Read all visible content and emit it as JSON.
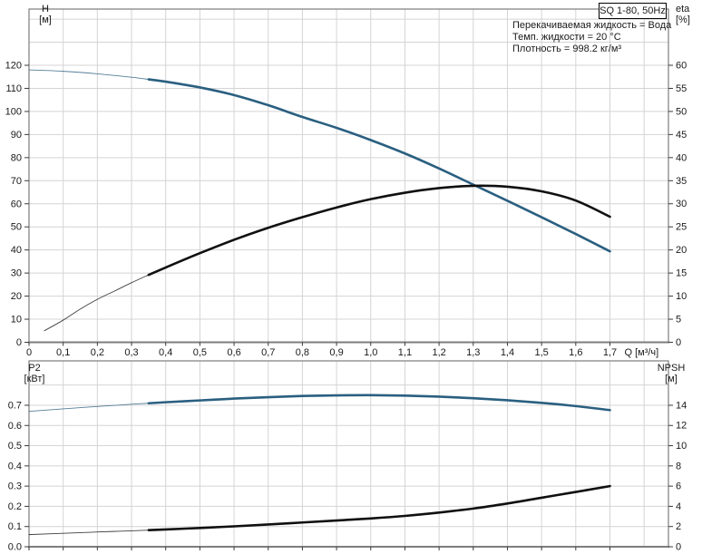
{
  "header": {
    "model_badge": "SQ 1-80, 50Hz",
    "info_lines": [
      "Перекачиваемая жидкость = Вода",
      "Темп. жидкости = 20 °C",
      "Плотность = 998.2 кг/м³"
    ]
  },
  "colors": {
    "curve_blue": "#2a5f80",
    "curve_black": "#101010",
    "grid": "#d4d4d4",
    "frame": "#7d7d7d",
    "tick": "#3a3a3a",
    "label": "#1a1a1a"
  },
  "chart_data": [
    {
      "type": "line",
      "title": "SQ 1-80, 50Hz",
      "grid": true,
      "x_axis": {
        "label": "Q [м³/ч]",
        "min": 0,
        "max": 1.7,
        "tick_step": 0.1,
        "show_labels": true,
        "tick_labels": [
          "0",
          "0,1",
          "0,2",
          "0,3",
          "0,4",
          "0,5",
          "0,6",
          "0,7",
          "0,8",
          "0,9",
          "1,0",
          "1,1",
          "1,2",
          "1,3",
          "1,4",
          "1,5",
          "1,6",
          "1,7"
        ]
      },
      "left_axis": {
        "label": "H",
        "unit": "[м]",
        "min": 0,
        "max": 120,
        "tick_step": 10,
        "tick_labels": [
          "0",
          "10",
          "20",
          "30",
          "40",
          "50",
          "60",
          "70",
          "80",
          "90",
          "100",
          "110",
          "120"
        ]
      },
      "right_axis": {
        "label": "eta",
        "unit": "[%]",
        "min": 0,
        "max": 60,
        "tick_step": 5,
        "tick_labels": [
          "0",
          "5",
          "10",
          "15",
          "20",
          "25",
          "30",
          "35",
          "40",
          "45",
          "50",
          "55",
          "60"
        ]
      },
      "series": [
        {
          "name": "head-curve-H",
          "axis": "left",
          "color": "#2a5f80",
          "thin_until": 0.35,
          "points": [
            [
              0,
              118
            ],
            [
              0.1,
              117.4
            ],
            [
              0.2,
              116.3
            ],
            [
              0.3,
              114.8
            ],
            [
              0.35,
              113.9
            ],
            [
              0.4,
              112.9
            ],
            [
              0.5,
              110.4
            ],
            [
              0.6,
              107.1
            ],
            [
              0.7,
              102.7
            ],
            [
              0.8,
              97.6
            ],
            [
              0.9,
              92.9
            ],
            [
              1.0,
              87.6
            ],
            [
              1.1,
              81.8
            ],
            [
              1.2,
              75.3
            ],
            [
              1.3,
              68.3
            ],
            [
              1.4,
              61.3
            ],
            [
              1.5,
              54.2
            ],
            [
              1.6,
              46.9
            ],
            [
              1.7,
              39.4
            ]
          ]
        },
        {
          "name": "efficiency-curve-eta",
          "axis": "right",
          "color": "#101010",
          "thin_until": 0.35,
          "points": [
            [
              0.045,
              2.5
            ],
            [
              0.1,
              4.8
            ],
            [
              0.15,
              7.2
            ],
            [
              0.2,
              9.3
            ],
            [
              0.25,
              11.1
            ],
            [
              0.3,
              12.9
            ],
            [
              0.35,
              14.6
            ],
            [
              0.4,
              16.2
            ],
            [
              0.5,
              19.3
            ],
            [
              0.6,
              22.2
            ],
            [
              0.7,
              24.8
            ],
            [
              0.8,
              27.1
            ],
            [
              0.9,
              29.2
            ],
            [
              1.0,
              31.0
            ],
            [
              1.1,
              32.4
            ],
            [
              1.2,
              33.4
            ],
            [
              1.3,
              33.9
            ],
            [
              1.4,
              33.7
            ],
            [
              1.5,
              32.7
            ],
            [
              1.6,
              30.7
            ],
            [
              1.7,
              27.2
            ]
          ]
        }
      ]
    },
    {
      "type": "line",
      "title": "",
      "grid": true,
      "x_axis": {
        "label": "",
        "min": 0,
        "max": 1.7,
        "tick_step": 0.1,
        "show_labels": false,
        "tick_labels": [
          "0",
          "0,1",
          "0,2",
          "0,3",
          "0,4",
          "0,5",
          "0,6",
          "0,7",
          "0,8",
          "0,9",
          "1,0",
          "1,1",
          "1,2",
          "1,3",
          "1,4",
          "1,5",
          "1,6",
          "1,7"
        ]
      },
      "left_axis": {
        "label": "P2",
        "unit": "[кВт]",
        "min": 0,
        "max": 0.7,
        "tick_step": 0.1,
        "tick_labels": [
          "0.0",
          "0.1",
          "0.2",
          "0.3",
          "0.4",
          "0.5",
          "0.6",
          "0.7"
        ]
      },
      "right_axis": {
        "label": "NPSH",
        "unit": "[м]",
        "min": 0,
        "max": 14,
        "tick_step": 2,
        "tick_labels": [
          "0",
          "2",
          "4",
          "6",
          "8",
          "10",
          "12",
          "14"
        ]
      },
      "series": [
        {
          "name": "power-curve-P2",
          "axis": "left",
          "color": "#2a5f80",
          "thin_until": 0.35,
          "points": [
            [
              0,
              0.67
            ],
            [
              0.1,
              0.682
            ],
            [
              0.2,
              0.694
            ],
            [
              0.3,
              0.705
            ],
            [
              0.35,
              0.71
            ],
            [
              0.4,
              0.715
            ],
            [
              0.5,
              0.724
            ],
            [
              0.6,
              0.733
            ],
            [
              0.7,
              0.74
            ],
            [
              0.8,
              0.746
            ],
            [
              0.9,
              0.749
            ],
            [
              1.0,
              0.75
            ],
            [
              1.1,
              0.748
            ],
            [
              1.2,
              0.743
            ],
            [
              1.3,
              0.735
            ],
            [
              1.4,
              0.725
            ],
            [
              1.5,
              0.712
            ],
            [
              1.6,
              0.696
            ],
            [
              1.7,
              0.676
            ]
          ]
        },
        {
          "name": "npsh-curve",
          "axis": "right",
          "color": "#101010",
          "thin_until": 0.35,
          "points": [
            [
              0,
              1.2
            ],
            [
              0.1,
              1.33
            ],
            [
              0.2,
              1.46
            ],
            [
              0.3,
              1.58
            ],
            [
              0.35,
              1.64
            ],
            [
              0.4,
              1.71
            ],
            [
              0.5,
              1.86
            ],
            [
              0.6,
              2.02
            ],
            [
              0.7,
              2.2
            ],
            [
              0.8,
              2.4
            ],
            [
              0.9,
              2.6
            ],
            [
              1.0,
              2.8
            ],
            [
              1.1,
              3.05
            ],
            [
              1.2,
              3.38
            ],
            [
              1.3,
              3.78
            ],
            [
              1.4,
              4.28
            ],
            [
              1.5,
              4.85
            ],
            [
              1.6,
              5.42
            ],
            [
              1.7,
              6.0
            ]
          ]
        }
      ]
    }
  ]
}
